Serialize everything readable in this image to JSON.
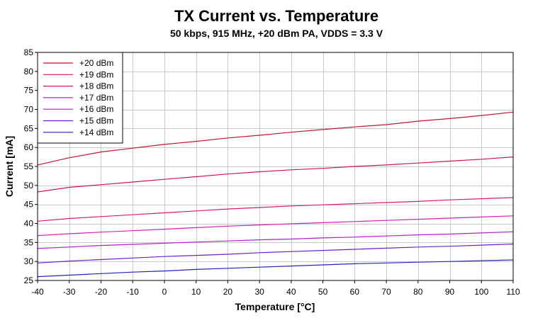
{
  "chart_data": {
    "type": "line",
    "title": "TX Current vs. Temperature",
    "subtitle": "50 kbps, 915 MHz, +20 dBm  PA, VDDS = 3.3 V",
    "xlabel": "Temperature [°C]",
    "ylabel": "Current [mA]",
    "xlim": [
      -40,
      110
    ],
    "ylim": [
      25,
      85
    ],
    "xticks": [
      -40,
      -30,
      -20,
      -10,
      0,
      10,
      20,
      30,
      40,
      50,
      60,
      70,
      80,
      90,
      100,
      110
    ],
    "yticks": [
      25,
      30,
      35,
      40,
      45,
      50,
      55,
      60,
      65,
      70,
      75,
      80,
      85
    ],
    "grid": true,
    "legend_position": "top-left",
    "x": [
      -40,
      -30,
      -20,
      -10,
      0,
      10,
      20,
      30,
      40,
      50,
      60,
      70,
      80,
      90,
      100,
      110
    ],
    "series": [
      {
        "name": "+20 dBm",
        "color": "#c0152f",
        "values": [
          55.4,
          57.3,
          58.8,
          59.8,
          60.8,
          61.6,
          62.5,
          63.2,
          64.0,
          64.7,
          65.4,
          66.0,
          66.9,
          67.6,
          68.4,
          69.3
        ]
      },
      {
        "name": "+19 dBm",
        "color": "#cc1650",
        "values": [
          48.3,
          49.5,
          50.2,
          50.9,
          51.6,
          52.3,
          53.0,
          53.6,
          54.1,
          54.5,
          55.0,
          55.4,
          55.9,
          56.4,
          56.9,
          57.5
        ]
      },
      {
        "name": "+18 dBm",
        "color": "#d41a78",
        "values": [
          40.6,
          41.3,
          41.8,
          42.3,
          42.8,
          43.3,
          43.8,
          44.2,
          44.6,
          44.9,
          45.2,
          45.5,
          45.8,
          46.2,
          46.5,
          46.8
        ]
      },
      {
        "name": "+17 dBm",
        "color": "#d21fb2",
        "values": [
          36.8,
          37.3,
          37.7,
          38.1,
          38.5,
          38.9,
          39.3,
          39.6,
          39.9,
          40.2,
          40.5,
          40.8,
          41.1,
          41.4,
          41.7,
          42.0
        ]
      },
      {
        "name": "+16 dBm",
        "color": "#b01fd0",
        "values": [
          33.4,
          33.8,
          34.2,
          34.5,
          34.8,
          35.1,
          35.4,
          35.7,
          35.9,
          36.2,
          36.4,
          36.7,
          37.0,
          37.2,
          37.5,
          37.8
        ]
      },
      {
        "name": "+15 dBm",
        "color": "#6a22c8",
        "values": [
          29.6,
          30.1,
          30.5,
          30.9,
          31.3,
          31.6,
          31.9,
          32.3,
          32.6,
          32.9,
          33.2,
          33.5,
          33.8,
          34.0,
          34.3,
          34.6
        ]
      },
      {
        "name": "+14 dBm",
        "color": "#2424b4",
        "values": [
          26.0,
          26.4,
          26.8,
          27.2,
          27.5,
          27.9,
          28.2,
          28.5,
          28.8,
          29.1,
          29.4,
          29.6,
          29.8,
          30.0,
          30.2,
          30.4
        ]
      }
    ]
  }
}
